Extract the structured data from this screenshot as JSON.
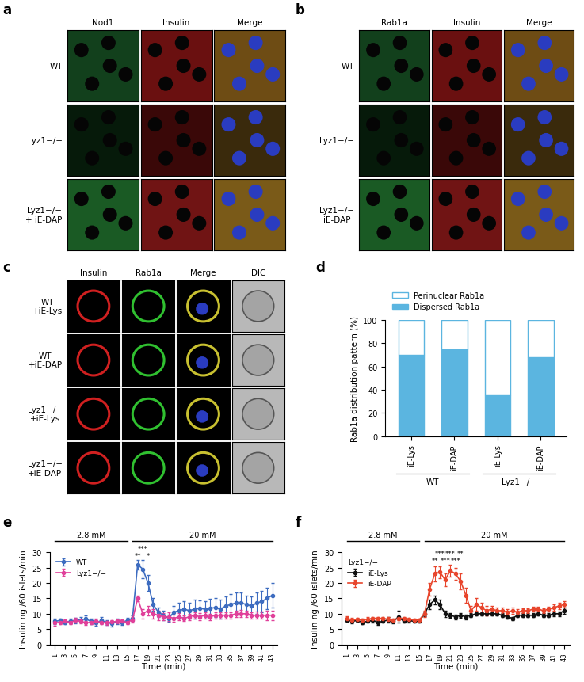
{
  "image_panels": [
    {
      "panel": "a",
      "columns": [
        "Nod1",
        "Insulin",
        "Merge"
      ],
      "rows": [
        "WT",
        "Lyz1−/−",
        "Lyz1−/−\n+ iE-DAP"
      ]
    },
    {
      "panel": "b",
      "columns": [
        "Rab1a",
        "Insulin",
        "Merge"
      ],
      "rows": [
        "WT",
        "Lyz1−/−",
        "Lyz1−/−\niE-DAP"
      ]
    },
    {
      "panel": "c",
      "columns": [
        "Insulin",
        "Rab1a",
        "Merge",
        "DIC"
      ],
      "rows": [
        "WT\n+iE-Lys",
        "WT\n+iE-DAP",
        "Lyz1−/−\n+iE-Lys",
        "Lyz1−/−\n+iE-DAP"
      ]
    }
  ],
  "chart_data": [
    {
      "panel": "d",
      "type": "bar",
      "stacked": true,
      "legend": "top",
      "categories": [
        "iE-Lys",
        "iE-DAP",
        "iE-Lys",
        "iE-DAP"
      ],
      "groups": [
        {
          "name": "WT",
          "size": 2
        },
        {
          "name": "Lyz1−/−",
          "size": 2
        }
      ],
      "series": [
        {
          "name": "Dispersed Rab1a",
          "color": "#5bb5e0",
          "values": [
            70,
            75,
            35,
            68
          ]
        },
        {
          "name": "Perinuclear Rab1a",
          "color": "#ffffff",
          "values": [
            30,
            25,
            65,
            32
          ]
        }
      ],
      "y_label": "Rab1a distribution pattern (%)",
      "ylim": [
        0,
        100
      ],
      "yticks": [
        0,
        20,
        40,
        60,
        80,
        100
      ]
    },
    {
      "panel": "e",
      "type": "line",
      "legend": "upper left",
      "x": [
        1,
        2,
        3,
        4,
        5,
        6,
        7,
        8,
        9,
        10,
        11,
        12,
        13,
        14,
        15,
        16,
        17,
        18,
        19,
        20,
        21,
        22,
        23,
        24,
        25,
        26,
        27,
        28,
        29,
        30,
        31,
        32,
        33,
        34,
        35,
        36,
        37,
        38,
        39,
        40,
        41,
        42,
        43
      ],
      "series": [
        {
          "name": "WT",
          "color": "#3d6cc0",
          "marker": "circle",
          "values": [
            7.5,
            7.8,
            7.2,
            7.6,
            7.8,
            8.0,
            8.3,
            7.5,
            7.0,
            7.8,
            7.2,
            6.8,
            7.5,
            7.2,
            7.8,
            8.5,
            26,
            24.5,
            20,
            13,
            10.5,
            9.5,
            8.5,
            10.5,
            11,
            11.5,
            11,
            11.5,
            11.8,
            11.5,
            11.8,
            12,
            11.5,
            12.5,
            13,
            13.5,
            13.5,
            13,
            12.5,
            13.5,
            14,
            15,
            16
          ],
          "errors": [
            0.8,
            0.7,
            0.6,
            0.8,
            0.9,
            1.0,
            1.2,
            0.9,
            0.8,
            1.0,
            0.8,
            0.9,
            1.0,
            0.8,
            0.9,
            1.0,
            1.5,
            3.0,
            2.5,
            2.0,
            1.5,
            1.5,
            1.2,
            2.0,
            2.5,
            2.5,
            2.5,
            3.0,
            2.5,
            2.5,
            3.0,
            3.0,
            3.0,
            3.0,
            3.5,
            3.5,
            3.5,
            3.0,
            3.0,
            3.5,
            3.5,
            3.5,
            4.0
          ]
        },
        {
          "name": "Lyz1−/−",
          "color": "#e0409a",
          "marker": "circle",
          "values": [
            7,
            7.2,
            7.5,
            7.2,
            7.8,
            7.5,
            7,
            7.2,
            7.5,
            7.2,
            7,
            7.3,
            7.5,
            7.5,
            7.2,
            8,
            15,
            10,
            11,
            10,
            9.5,
            9,
            9,
            8.5,
            9,
            8.5,
            9,
            9.5,
            9,
            9.5,
            9,
            9.5,
            9.5,
            9.5,
            9.5,
            10,
            10,
            10,
            9.5,
            9.5,
            9.5,
            9.5,
            9.5
          ],
          "errors": [
            0.8,
            0.6,
            0.7,
            0.6,
            0.8,
            0.7,
            0.6,
            0.7,
            0.8,
            0.6,
            0.7,
            0.6,
            0.7,
            0.7,
            0.6,
            0.8,
            1.0,
            1.5,
            1.5,
            1.5,
            1.5,
            1.2,
            1.5,
            1.2,
            1.2,
            1.0,
            1.0,
            1.0,
            1.2,
            1.0,
            1.0,
            1.0,
            1.0,
            1.0,
            1.0,
            1.0,
            1.2,
            1.0,
            1.0,
            1.2,
            1.2,
            1.5,
            1.5
          ]
        }
      ],
      "x_label": "Time (min)",
      "y_label": "Insulin ng /60 islets/min",
      "xlim": [
        0,
        44
      ],
      "ylim": [
        0,
        30
      ],
      "xticks": [
        1,
        3,
        5,
        7,
        9,
        11,
        13,
        15,
        17,
        19,
        21,
        23,
        25,
        27,
        29,
        31,
        33,
        35,
        37,
        39,
        41,
        43
      ],
      "yticks": [
        0,
        5,
        10,
        15,
        20,
        25,
        30
      ],
      "conditions": [
        {
          "label": "2.8 mM",
          "start": 1,
          "end": 15
        },
        {
          "label": "20 mM",
          "start": 16,
          "end": 43
        }
      ],
      "annotations": [
        {
          "x": 17,
          "text": "**"
        },
        {
          "x": 18,
          "text": "***"
        },
        {
          "x": 19,
          "text": "*"
        }
      ]
    },
    {
      "panel": "f",
      "type": "line",
      "legend": "upper left",
      "legend_title": "Lyz1−/−",
      "x": [
        1,
        2,
        3,
        4,
        5,
        6,
        7,
        8,
        9,
        10,
        11,
        12,
        13,
        14,
        15,
        16,
        17,
        18,
        19,
        20,
        21,
        22,
        23,
        24,
        25,
        26,
        27,
        28,
        29,
        30,
        31,
        32,
        33,
        34,
        35,
        36,
        37,
        38,
        39,
        40,
        41,
        42,
        43
      ],
      "series": [
        {
          "name": "iE-Lys",
          "color": "#111111",
          "marker": "circle",
          "values": [
            8,
            7.5,
            7.8,
            7.2,
            7.5,
            7.8,
            7.2,
            7.5,
            8,
            7.5,
            9,
            7.5,
            7.8,
            7.5,
            7.5,
            10,
            13,
            14.5,
            13,
            10,
            9.5,
            9,
            9.5,
            9,
            9.5,
            10,
            10,
            10,
            10,
            10,
            9.5,
            9,
            8.5,
            9.5,
            9.5,
            9.5,
            9.5,
            10,
            9.5,
            9.5,
            10,
            10,
            11
          ],
          "errors": [
            0.6,
            0.6,
            0.5,
            0.6,
            0.5,
            0.6,
            0.8,
            0.5,
            1.0,
            0.6,
            2.0,
            0.5,
            0.6,
            0.5,
            0.5,
            0.8,
            1.5,
            1.5,
            1.5,
            1.0,
            0.8,
            0.8,
            0.8,
            0.8,
            0.6,
            0.5,
            0.5,
            0.5,
            0.5,
            0.5,
            0.6,
            0.5,
            0.5,
            0.6,
            0.6,
            0.6,
            0.6,
            0.6,
            0.6,
            0.6,
            0.8,
            0.8,
            1.0
          ]
        },
        {
          "name": "iE-DAP",
          "color": "#e8452c",
          "marker": "circle",
          "values": [
            8.5,
            8,
            8.2,
            8,
            8.2,
            8.5,
            8.5,
            8.5,
            8.2,
            8,
            8.5,
            8.5,
            8.2,
            8,
            8,
            10,
            18,
            23,
            23.5,
            21,
            24,
            23,
            20.5,
            16,
            11,
            13,
            12,
            11,
            11.5,
            11,
            11,
            10.5,
            11,
            10.5,
            11,
            11,
            11.5,
            11.5,
            11,
            11.5,
            12,
            12.5,
            13
          ],
          "errors": [
            0.6,
            0.6,
            0.5,
            0.5,
            0.6,
            0.5,
            0.5,
            0.5,
            0.6,
            0.5,
            0.6,
            0.5,
            0.5,
            0.5,
            0.5,
            1.0,
            2.0,
            2.5,
            2.0,
            2.0,
            2.0,
            2.0,
            2.5,
            2.5,
            1.5,
            2.0,
            1.5,
            1.5,
            1.0,
            1.0,
            1.0,
            1.0,
            1.0,
            1.0,
            0.8,
            0.8,
            0.8,
            0.8,
            0.8,
            0.8,
            1.0,
            1.0,
            1.0
          ]
        }
      ],
      "x_label": "Time (min)",
      "y_label": "Insulin ng /60 islets/min",
      "xlim": [
        0,
        44
      ],
      "ylim": [
        0,
        30
      ],
      "xticks": [
        1,
        3,
        5,
        7,
        9,
        11,
        13,
        15,
        17,
        19,
        21,
        23,
        25,
        27,
        29,
        31,
        33,
        35,
        37,
        39,
        41,
        43
      ],
      "yticks": [
        0,
        5,
        10,
        15,
        20,
        25,
        30
      ],
      "conditions": [
        {
          "label": "2.8 mM",
          "start": 1,
          "end": 15
        },
        {
          "label": "20 mM",
          "start": 16,
          "end": 43
        }
      ],
      "annotations": [
        {
          "x": 18,
          "text": "**"
        },
        {
          "x": 19,
          "text": "***"
        },
        {
          "x": 20,
          "text": "***"
        },
        {
          "x": 21,
          "text": "***"
        },
        {
          "x": 22,
          "text": "***"
        },
        {
          "x": 23,
          "text": "**"
        }
      ]
    }
  ]
}
